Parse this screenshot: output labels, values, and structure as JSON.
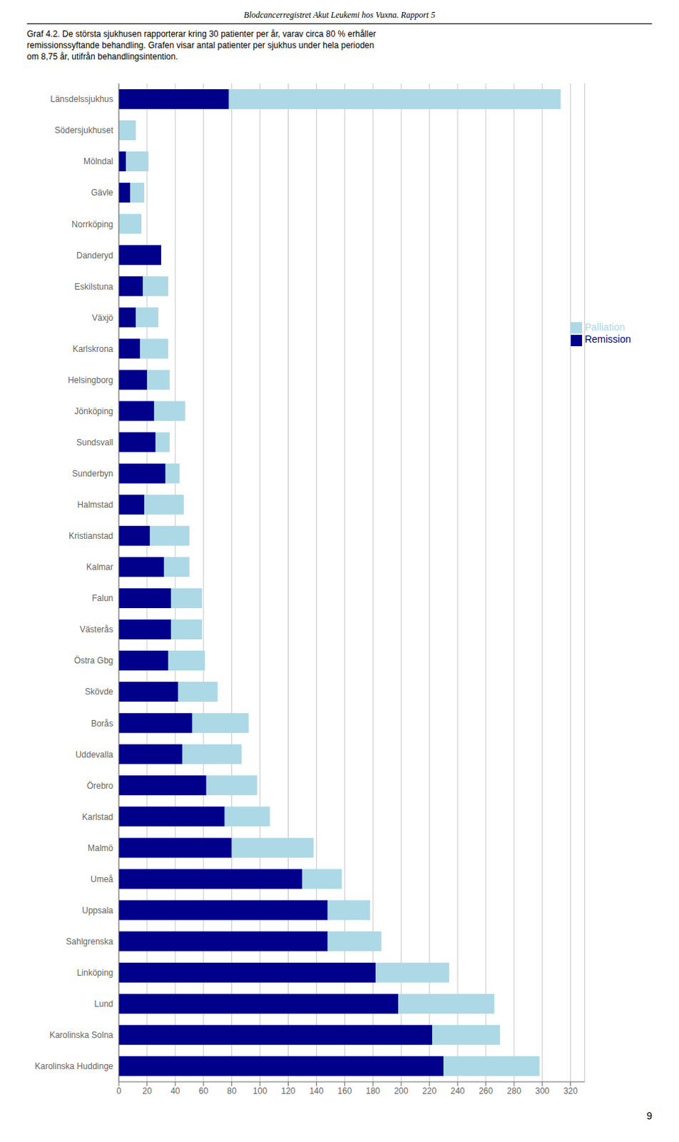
{
  "chart_data": {
    "type": "bar",
    "title": "Blodcancerregistret Akut Leukemi hos Vuxna.  Rapport 5",
    "subtitle": [
      "Graf 4.2. De största sjukhusen rapporterar kring 30 patienter per år, varav circa 80 % erhåller",
      "remissionssyftande behandling. Grafen visar antal patienter per sjukhus under hela perioden",
      "om 8,75 år, utifrån behandlingsintention."
    ],
    "annotations": [
      "9"
    ],
    "orientation": "horizontal",
    "stacked": true,
    "grid": true,
    "legend": "upper right",
    "categories": [
      "Länsdelssjukhus",
      "Södersjukhuset",
      "Mölndal",
      "Gävle",
      "Norrköping",
      "Danderyd",
      "Eskilstuna",
      "Växjö",
      "Karlskrona",
      "Helsingborg",
      "Jönköping",
      "Sundsvall",
      "Sunderbyn",
      "Halmstad",
      "Kristianstad",
      "Kalmar",
      "Falun",
      "Västerås",
      "Östra Gbg",
      "Skövde",
      "Borås",
      "Uddevalla",
      "Örebro",
      "Karlstad",
      "Malmö",
      "Umeå",
      "Uppsala",
      "Sahlgrenska",
      "Linköping",
      "Lund",
      "Karolinska Solna",
      "Karolinska Huddinge"
    ],
    "series": [
      {
        "name": "Remission",
        "color": "#00008B",
        "values": [
          78,
          0,
          5,
          8,
          0,
          30,
          17,
          12,
          15,
          20,
          25,
          26,
          33,
          18,
          22,
          32,
          37,
          37,
          35,
          42,
          52,
          45,
          62,
          75,
          80,
          130,
          148,
          148,
          182,
          198,
          222,
          230
        ]
      },
      {
        "name": "Palliation",
        "color": "#ADD8E6",
        "values": [
          235,
          12,
          16,
          10,
          16,
          0,
          18,
          16,
          20,
          16,
          22,
          10,
          10,
          28,
          28,
          18,
          22,
          22,
          26,
          28,
          40,
          42,
          36,
          32,
          58,
          28,
          30,
          38,
          52,
          68,
          48,
          68
        ]
      }
    ],
    "xlim": [
      0,
      330
    ],
    "xticks": [
      0,
      20,
      40,
      60,
      80,
      100,
      120,
      140,
      160,
      180,
      200,
      220,
      240,
      260,
      280,
      300,
      320
    ]
  }
}
